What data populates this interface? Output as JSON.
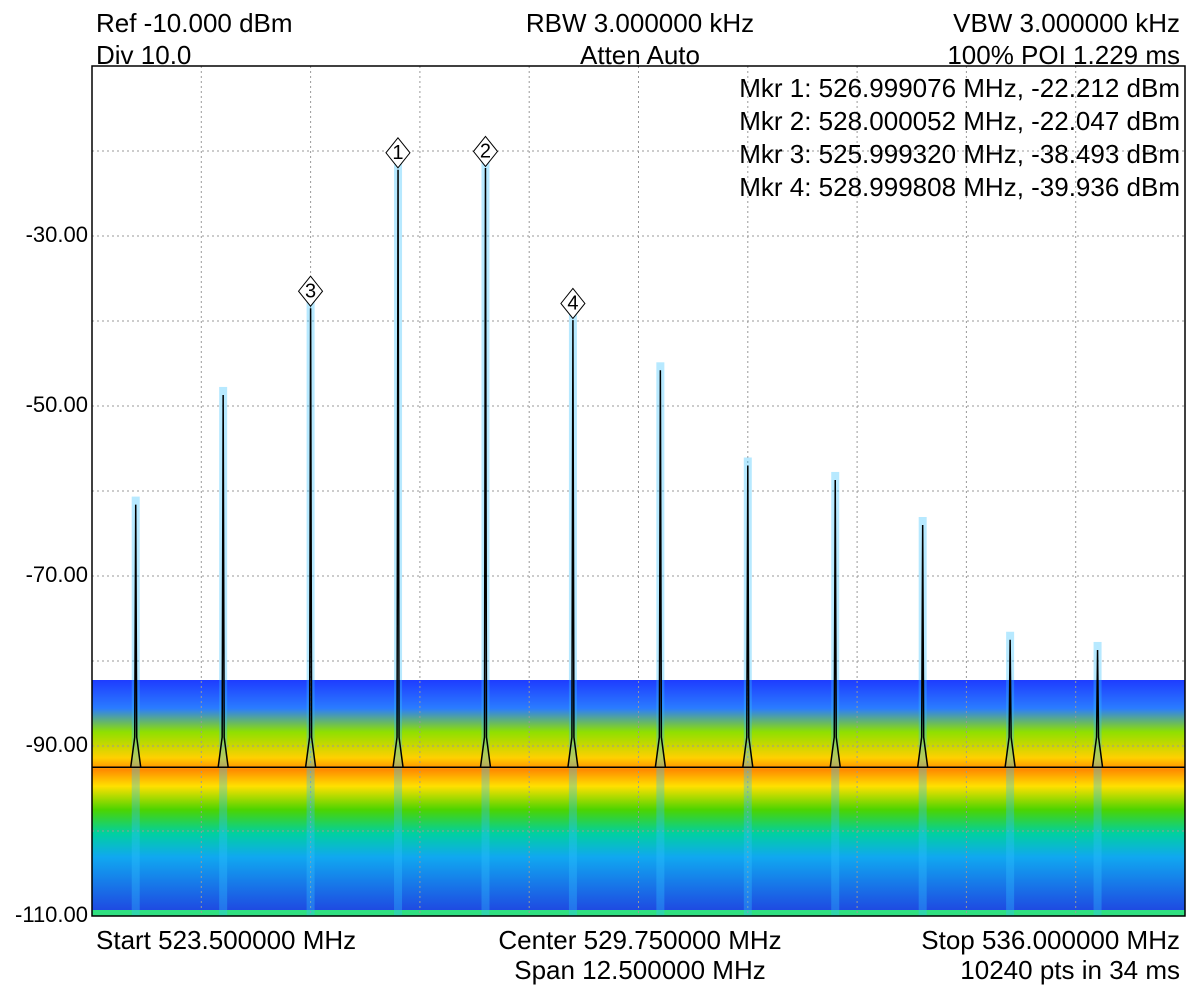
{
  "chart_data": {
    "type": "spectrum",
    "annotations": [
      "Ref -10.000 dBm",
      "Div 10.0",
      "RBW 3.000000 kHz",
      "Atten Auto",
      "VBW 3.000000 kHz",
      "100% POI 1.229 ms",
      "Start 523.500000 MHz",
      "Center 529.750000 MHz",
      "Span 12.500000 MHz",
      "Stop 536.000000 MHz",
      "10240 pts in 34 ms"
    ],
    "xlim": [
      523.5,
      536
    ],
    "ylim": [
      -110,
      -10
    ],
    "yticks": [
      {
        "value": -30,
        "label": "-30.00"
      },
      {
        "value": -50,
        "label": "-50.00"
      },
      {
        "value": -70,
        "label": "-70.00"
      },
      {
        "value": -90,
        "label": "-90.00"
      },
      {
        "value": -110,
        "label": "-110.00"
      }
    ],
    "grid": true,
    "floor": -92.5,
    "series": [
      {
        "name": "trace",
        "color": "#000000",
        "x": [
          524,
          525,
          526,
          527,
          528,
          529,
          530,
          531,
          532,
          533,
          534,
          535
        ],
        "values": [
          -61.6,
          -48.7,
          -38.5,
          -22.2,
          -22.0,
          -39.9,
          -45.8,
          -57,
          -58.7,
          -64,
          -77.5,
          -78.7
        ]
      }
    ],
    "markers": [
      {
        "label": "1",
        "text": "Mkr 1: 526.999076 MHz, -22.212 dBm",
        "x": 526.999076,
        "value": -22.212
      },
      {
        "label": "2",
        "text": "Mkr 2: 528.000052 MHz, -22.047 dBm",
        "x": 528.000052,
        "value": -22.047
      },
      {
        "label": "3",
        "text": "Mkr 3: 525.999320 MHz, -38.493 dBm",
        "x": 525.99932,
        "value": -38.493
      },
      {
        "label": "4",
        "text": "Mkr 4: 528.999808 MHz, -39.936 dBm",
        "x": 528.999808,
        "value": -39.936
      }
    ]
  }
}
